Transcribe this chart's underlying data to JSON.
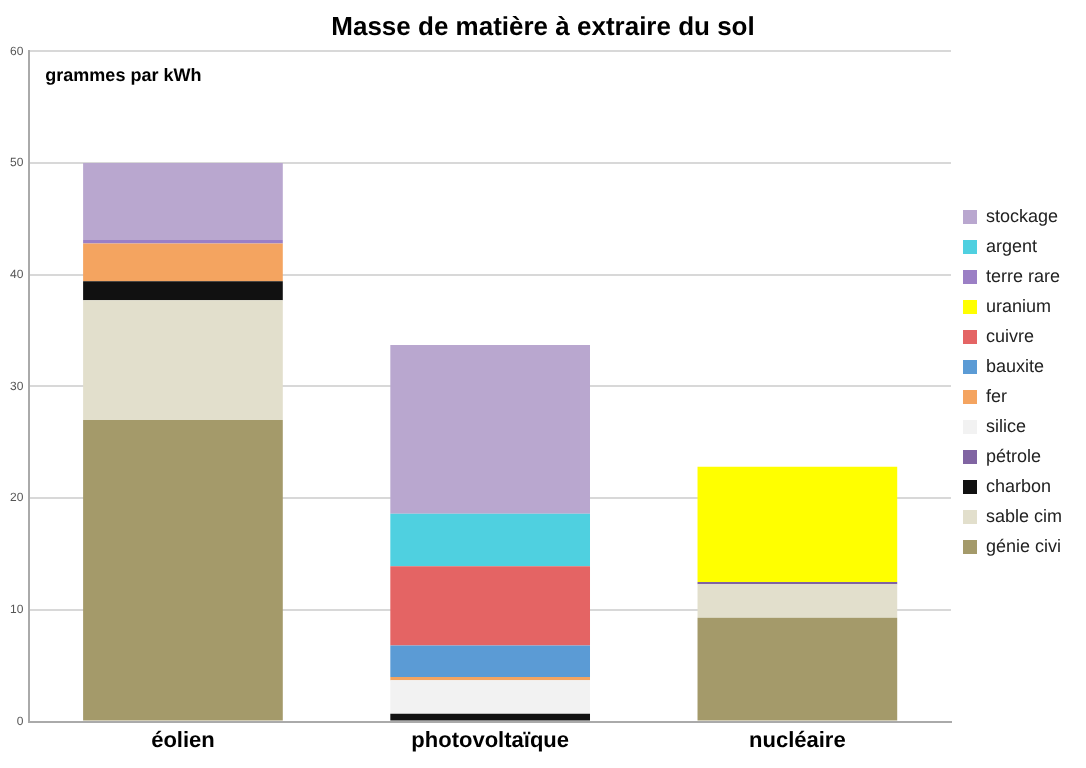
{
  "chart_data": {
    "type": "bar",
    "title": "Masse de matière à extraire du sol",
    "annotations": [
      "grammes par kWh"
    ],
    "categories": [
      "éolien",
      "photovoltaïque",
      "nucléaire"
    ],
    "stacked": true,
    "ylim": [
      0,
      60
    ],
    "yticks": [
      0,
      10,
      20,
      30,
      40,
      50,
      60
    ],
    "grid": "y",
    "legend": "right",
    "series": [
      {
        "name": "génie civi",
        "color": "#a49a6a",
        "values": [
          27,
          null,
          9.3
        ]
      },
      {
        "name": "sable cim",
        "color": "#e2dfcc",
        "values": [
          10.7,
          null,
          3
        ]
      },
      {
        "name": "charbon",
        "color": "#111111",
        "values": [
          1.7,
          0.7,
          null
        ]
      },
      {
        "name": "pétrole",
        "color": "#8064a2",
        "values": [
          null,
          null,
          0.2
        ]
      },
      {
        "name": "silice",
        "color": "#f2f2f2",
        "values": [
          null,
          3,
          null
        ]
      },
      {
        "name": "fer",
        "color": "#f4a460",
        "values": [
          3.4,
          0.3,
          null
        ]
      },
      {
        "name": "bauxite",
        "color": "#5b9bd5",
        "values": [
          null,
          2.8,
          null
        ]
      },
      {
        "name": "cuivre",
        "color": "#e46464",
        "values": [
          null,
          7.1,
          null
        ]
      },
      {
        "name": "uranium",
        "color": "#ffff00",
        "values": [
          null,
          null,
          10.3
        ]
      },
      {
        "name": "terre rare",
        "color": "#9b7fc5",
        "values": [
          0.3,
          null,
          null
        ]
      },
      {
        "name": "argent",
        "color": "#4fd0e0",
        "values": [
          null,
          4.7,
          null
        ]
      },
      {
        "name": "stockage",
        "color": "#b9a7cf",
        "values": [
          6.9,
          15.1,
          null
        ]
      }
    ]
  }
}
